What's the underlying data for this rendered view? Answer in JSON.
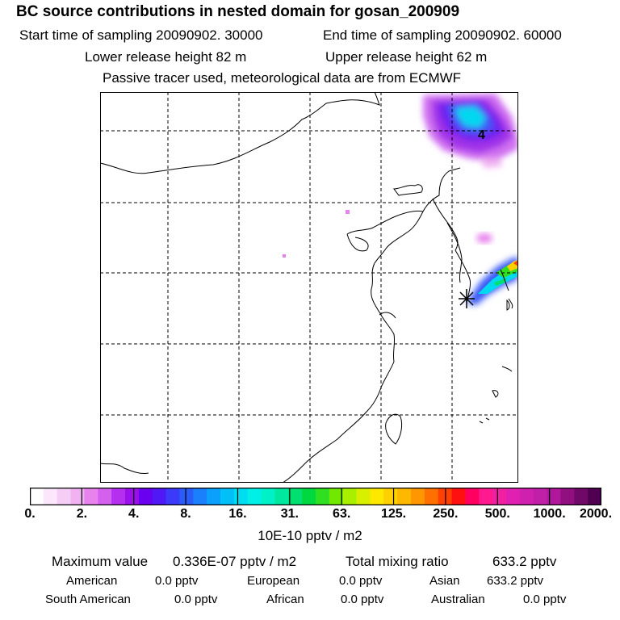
{
  "header": {
    "title": "BC  source contributions in nested domain for gosan_200909",
    "start_label": "Start time of sampling 20090902. 30000",
    "end_label": "End time of sampling 20090902. 60000",
    "lower_label": "Lower release height   82 m",
    "upper_label": "Upper release height   62 m",
    "note": "Passive tracer used, meteorological data are from ECMWF"
  },
  "map": {
    "contour_label": "4",
    "receptor_symbol": "star-marker"
  },
  "colorbar": {
    "ticks": [
      "0.",
      "2.",
      "4.",
      "8.",
      "16.",
      "31.",
      "63.",
      "125.",
      "250.",
      "500.",
      "1000.",
      "2000."
    ],
    "colors": [
      "#ffffff",
      "#fbe6fb",
      "#f5cdf5",
      "#f0b2f0",
      "#e882ec",
      "#d460ee",
      "#b52ff0",
      "#9a10e8",
      "#6a00f0",
      "#5018f4",
      "#3a3af8",
      "#2a5cfa",
      "#1a80fc",
      "#0aa0fc",
      "#00c0f8",
      "#00dcf0",
      "#00f0e8",
      "#00f0c8",
      "#00e8a0",
      "#00e070",
      "#00d840",
      "#30e020",
      "#70e800",
      "#a8f000",
      "#d8f000",
      "#ffe800",
      "#ffd000",
      "#ffb800",
      "#ff9800",
      "#ff7000",
      "#ff4000",
      "#ff1010",
      "#ff0060",
      "#ff1a90",
      "#f020a0",
      "#e020b0",
      "#d020b0",
      "#c020a8",
      "#b0189c",
      "#901080",
      "#700868",
      "#500050"
    ],
    "units": "10E-10 pptv / m2"
  },
  "stats": {
    "max_label": "Maximum value",
    "max_value": "0.336E-07 pptv / m2",
    "total_label": "Total mixing ratio",
    "total_value": "633.2 pptv"
  },
  "regions": [
    {
      "name": "American",
      "value": "0.0 pptv"
    },
    {
      "name": "European",
      "value": "0.0 pptv"
    },
    {
      "name": "Asian",
      "value": "633.2 pptv"
    },
    {
      "name": "South American",
      "value": "0.0 pptv"
    },
    {
      "name": "African",
      "value": "0.0 pptv"
    },
    {
      "name": "Australian",
      "value": "0.0 pptv"
    }
  ],
  "colors": {
    "gridline": "#000000",
    "coastline": "#000000"
  }
}
